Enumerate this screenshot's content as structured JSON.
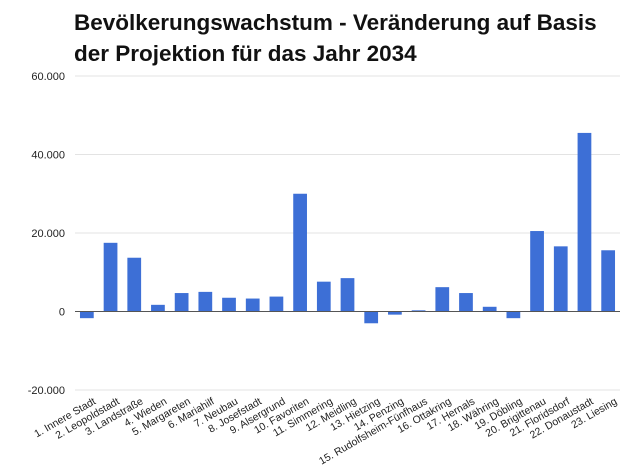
{
  "title_line1": "Bevölkerungswachstum - Veränderung auf Basis",
  "title_line2": "der Projektion für das Jahr 2034",
  "colors": {
    "bar": "#3d6fd6",
    "grid": "#e3e3e3",
    "zero_line": "#555555",
    "text": "#222222"
  },
  "chart_data": {
    "type": "bar",
    "title": "Bevölkerungswachstum - Veränderung auf Basis der Projektion für das Jahr 2034",
    "xlabel": "",
    "ylabel": "",
    "ylim": [
      -20000,
      60000
    ],
    "yticks": [
      -20000,
      0,
      20000,
      40000,
      60000
    ],
    "ytick_labels": [
      "-20.000",
      "0",
      "20.000",
      "40.000",
      "60.000"
    ],
    "grid": true,
    "legend": "none",
    "categories": [
      "1. Innere Stadt",
      "2. Leopoldstadt",
      "3. Landstraße",
      "4. Wieden",
      "5. Margareten",
      "6. Mariahilf",
      "7. Neubau",
      "8. Josefstadt",
      "9. Alsergrund",
      "10. Favoriten",
      "11. Simmering",
      "12. Meidling",
      "13. Hietzing",
      "14. Penzing",
      "15. Rudolfsheim-Fünfhaus",
      "16. Ottakring",
      "17. Hernals",
      "18. Währing",
      "19. Döbling",
      "20. Brigittenau",
      "21. Floridsdorf",
      "22. Donaustadt",
      "23. Liesing"
    ],
    "values": [
      -1700,
      17500,
      13700,
      1700,
      4700,
      5000,
      3500,
      3300,
      3800,
      30000,
      7600,
      8500,
      -3000,
      -800,
      300,
      6200,
      4700,
      1200,
      -1700,
      20500,
      16600,
      45500,
      15600
    ]
  }
}
